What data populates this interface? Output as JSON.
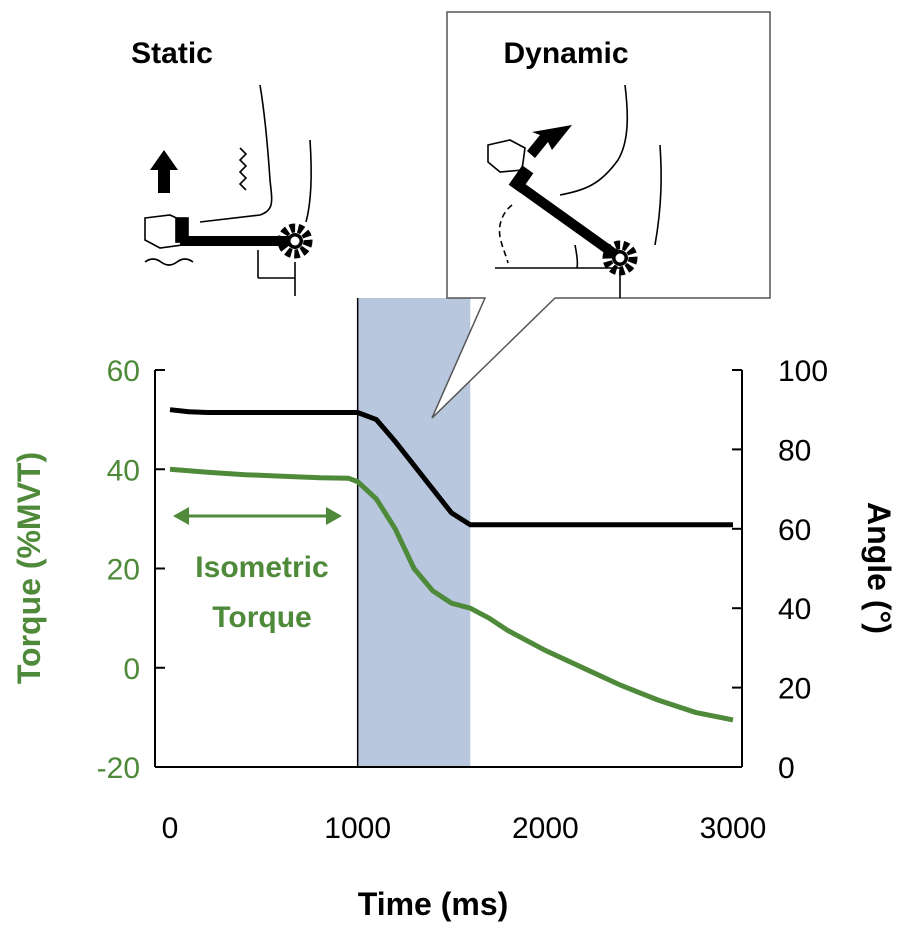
{
  "chart_data": {
    "type": "line",
    "xlabel": "Time (ms)",
    "ylabel": "Torque (%MVT)",
    "ylabel_right": "Angle (°)",
    "xlim": [
      0,
      3000
    ],
    "ylim": [
      -20,
      60
    ],
    "ylim_right": [
      0,
      100
    ],
    "x_ticks": [
      "0",
      "1000",
      "2000",
      "3000"
    ],
    "y_ticks": [
      "-20",
      "0",
      "20",
      "40",
      "60"
    ],
    "y_ticks_right": [
      "0",
      "20",
      "40",
      "60",
      "80",
      "100"
    ],
    "shaded_region": {
      "x_start": 1000,
      "x_end": 1600
    },
    "series": [
      {
        "axis": "left",
        "color": "#4e8a3a",
        "x": [
          0,
          200,
          400,
          600,
          800,
          950,
          1000,
          1100,
          1200,
          1300,
          1400,
          1500,
          1600,
          1700,
          1800,
          2000,
          2200,
          2400,
          2600,
          2800,
          3000
        ],
        "values": [
          40,
          39.4,
          38.9,
          38.6,
          38.3,
          38.2,
          37.5,
          34,
          28,
          20,
          15.5,
          13,
          12,
          10,
          7.5,
          3.5,
          0,
          -3.5,
          -6.5,
          -9,
          -10.5
        ]
      },
      {
        "axis": "right",
        "color": "#000000",
        "x": [
          0,
          100,
          200,
          1000,
          1100,
          1200,
          1300,
          1400,
          1500,
          1600,
          3000
        ],
        "values": [
          90,
          89.5,
          89.3,
          89.3,
          87.5,
          82,
          76,
          70,
          64,
          61,
          61
        ]
      }
    ],
    "annotations": {
      "isometric_line1": "Isometric",
      "isometric_line2": "Torque",
      "static": "Static",
      "dynamic": "Dynamic"
    },
    "colors": {
      "torque": "#4e8a3a",
      "angle": "#000000",
      "shade": "#b8c7de"
    }
  }
}
